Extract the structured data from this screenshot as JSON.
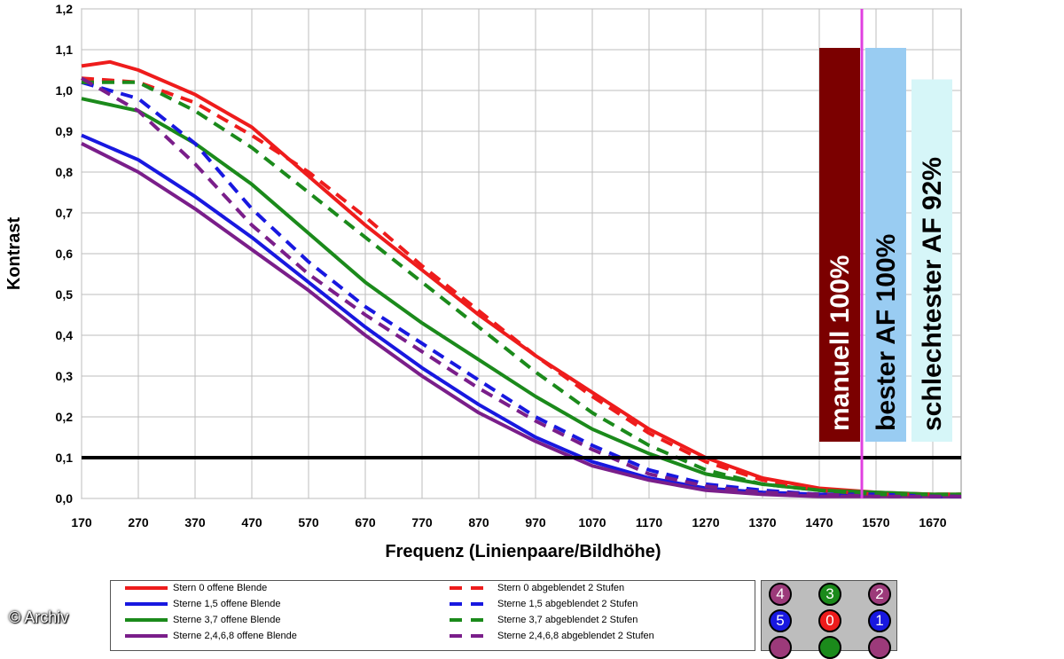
{
  "chart_data": {
    "type": "line",
    "xlabel": "Frequenz (Linienpaare/Bildhöhe)",
    "ylabel": "Kontrast",
    "xlim": [
      170,
      1720
    ],
    "ylim": [
      0,
      1.2
    ],
    "x_ticks": [
      170,
      270,
      370,
      470,
      570,
      670,
      770,
      870,
      970,
      1070,
      1170,
      1270,
      1370,
      1470,
      1570,
      1670
    ],
    "y_ticks": [
      "0,0",
      "0,1",
      "0,2",
      "0,3",
      "0,4",
      "0,5",
      "0,6",
      "0,7",
      "0,8",
      "0,9",
      "1,0",
      "1,1",
      "1,2"
    ],
    "grid": true,
    "threshold_line": {
      "y": 0.1,
      "color": "#000000"
    },
    "marker_line": {
      "x": 1545,
      "color": "#e040e0"
    },
    "series": [
      {
        "name": "Stern 0 offene Blende",
        "color": "#ee1c1c",
        "dash": false,
        "x": [
          170,
          220,
          270,
          370,
          470,
          570,
          670,
          770,
          870,
          970,
          1070,
          1170,
          1270,
          1370,
          1470,
          1570,
          1670,
          1720
        ],
        "y": [
          1.06,
          1.07,
          1.05,
          0.99,
          0.91,
          0.79,
          0.67,
          0.56,
          0.45,
          0.35,
          0.26,
          0.17,
          0.1,
          0.05,
          0.025,
          0.015,
          0.01,
          0.01
        ]
      },
      {
        "name": "Sterne 1,5 offene Blende",
        "color": "#1818e0",
        "dash": false,
        "x": [
          170,
          270,
          370,
          470,
          570,
          670,
          770,
          870,
          970,
          1070,
          1170,
          1270,
          1370,
          1470,
          1570,
          1670,
          1720
        ],
        "y": [
          0.89,
          0.83,
          0.74,
          0.64,
          0.53,
          0.42,
          0.32,
          0.23,
          0.15,
          0.09,
          0.05,
          0.025,
          0.015,
          0.01,
          0.01,
          0.005,
          0.005
        ]
      },
      {
        "name": "Sterne 3,7 offene Blende",
        "color": "#1b8a1b",
        "dash": false,
        "x": [
          170,
          270,
          370,
          470,
          570,
          670,
          770,
          870,
          970,
          1070,
          1170,
          1270,
          1370,
          1470,
          1570,
          1670,
          1720
        ],
        "y": [
          0.98,
          0.95,
          0.87,
          0.77,
          0.65,
          0.53,
          0.43,
          0.34,
          0.25,
          0.17,
          0.11,
          0.06,
          0.035,
          0.02,
          0.015,
          0.01,
          0.01
        ]
      },
      {
        "name": "Sterne 2,4,6,8 offene Blende",
        "color": "#7a1e8a",
        "dash": false,
        "x": [
          170,
          270,
          370,
          470,
          570,
          670,
          770,
          870,
          970,
          1070,
          1170,
          1270,
          1370,
          1470,
          1570,
          1670,
          1720
        ],
        "y": [
          0.87,
          0.8,
          0.71,
          0.61,
          0.51,
          0.4,
          0.3,
          0.21,
          0.14,
          0.08,
          0.045,
          0.02,
          0.01,
          0.005,
          0.005,
          0.005,
          0.005
        ]
      },
      {
        "name": "Stern 0 abgeblendet 2 Stufen",
        "color": "#ee1c1c",
        "dash": true,
        "x": [
          170,
          270,
          370,
          470,
          570,
          670,
          770,
          870,
          970,
          1070,
          1170,
          1270,
          1370,
          1470,
          1570,
          1670,
          1720
        ],
        "y": [
          1.03,
          1.02,
          0.97,
          0.89,
          0.8,
          0.69,
          0.57,
          0.46,
          0.35,
          0.25,
          0.16,
          0.09,
          0.045,
          0.02,
          0.01,
          0.01,
          0.01
        ]
      },
      {
        "name": "Sterne 1,5 abgeblendet 2 Stufen",
        "color": "#1818e0",
        "dash": true,
        "x": [
          170,
          270,
          370,
          470,
          570,
          670,
          770,
          870,
          970,
          1070,
          1170,
          1270,
          1370,
          1470,
          1570,
          1670,
          1720
        ],
        "y": [
          1.02,
          0.98,
          0.87,
          0.71,
          0.58,
          0.47,
          0.38,
          0.29,
          0.2,
          0.13,
          0.07,
          0.035,
          0.02,
          0.01,
          0.01,
          0.005,
          0.005
        ]
      },
      {
        "name": "Sterne 3,7 abgeblendet 2 Stufen",
        "color": "#1b8a1b",
        "dash": true,
        "x": [
          170,
          270,
          370,
          470,
          570,
          670,
          770,
          870,
          970,
          1070,
          1170,
          1270,
          1370,
          1470,
          1570,
          1670,
          1720
        ],
        "y": [
          1.02,
          1.02,
          0.95,
          0.86,
          0.75,
          0.64,
          0.53,
          0.42,
          0.31,
          0.21,
          0.13,
          0.07,
          0.035,
          0.02,
          0.01,
          0.01,
          0.01
        ]
      },
      {
        "name": "Sterne 2,4,6,8 abgeblendet 2 Stufen",
        "color": "#7a1e8a",
        "dash": true,
        "x": [
          170,
          270,
          370,
          470,
          570,
          670,
          770,
          870,
          970,
          1070,
          1170,
          1270,
          1370,
          1470,
          1570,
          1670,
          1720
        ],
        "y": [
          1.03,
          0.95,
          0.82,
          0.67,
          0.55,
          0.45,
          0.36,
          0.27,
          0.19,
          0.12,
          0.06,
          0.03,
          0.015,
          0.01,
          0.005,
          0.005,
          0.005
        ]
      }
    ],
    "bars": [
      {
        "label": "manuell 100%",
        "value": 100,
        "color": "#7b0000",
        "text_color": "#ffffff"
      },
      {
        "label": "bester AF 100%",
        "value": 100,
        "color": "#99ccf2",
        "text_color": "#000000"
      },
      {
        "label": "schlechtester AF 92%",
        "value": 92,
        "color": "#d6f6f8",
        "text_color": "#000000"
      }
    ]
  },
  "legend": {
    "items": [
      {
        "label": "Stern 0 offene Blende",
        "color": "#ee1c1c",
        "dash": false
      },
      {
        "label": "Sterne 1,5 offene Blende",
        "color": "#1818e0",
        "dash": false
      },
      {
        "label": "Sterne 3,7 offene Blende",
        "color": "#1b8a1b",
        "dash": false
      },
      {
        "label": "Sterne 2,4,6,8 offene Blende",
        "color": "#7a1e8a",
        "dash": false
      },
      {
        "label": "Stern 0 abgeblendet 2 Stufen",
        "color": "#ee1c1c",
        "dash": true
      },
      {
        "label": "Sterne 1,5 abgeblendet 2 Stufen",
        "color": "#1818e0",
        "dash": true
      },
      {
        "label": "Sterne 3,7 abgeblendet 2 Stufen",
        "color": "#1b8a1b",
        "dash": true
      },
      {
        "label": "Sterne 2,4,6,8 abgeblendet 2 Stufen",
        "color": "#7a1e8a",
        "dash": true
      }
    ]
  },
  "star_map": {
    "stars": [
      {
        "label": "4",
        "color": "#9c3a7a"
      },
      {
        "label": "3",
        "color": "#1b8a1b"
      },
      {
        "label": "2",
        "color": "#9c3a7a"
      },
      {
        "label": "5",
        "color": "#1818e0"
      },
      {
        "label": "0",
        "color": "#ee1c1c"
      },
      {
        "label": "1",
        "color": "#1818e0"
      },
      {
        "label": "",
        "color": "#9c3a7a"
      },
      {
        "label": "",
        "color": "#1b8a1b"
      },
      {
        "label": "",
        "color": "#9c3a7a"
      }
    ]
  },
  "credit": "© Archiv"
}
